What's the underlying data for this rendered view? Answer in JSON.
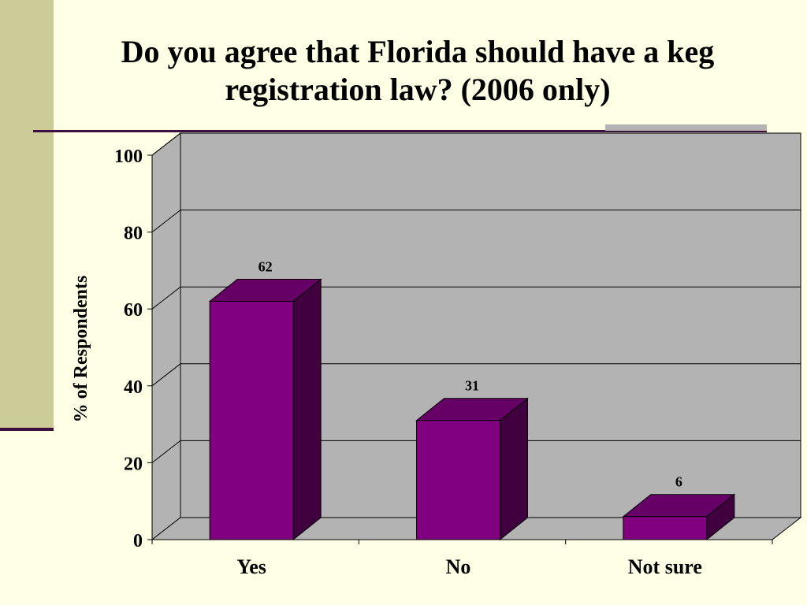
{
  "slide": {
    "title": "Do you agree that Florida should have a keg registration law? (2006 only)"
  },
  "colors": {
    "background": "#ffffe5",
    "side_band": "#cccc99",
    "rule": "#3d0f3d",
    "plot_wall": "#b3b3b3",
    "bar_front": "#800080",
    "bar_side": "#400040",
    "bar_top": "#660066"
  },
  "chart_data": {
    "type": "bar",
    "style": "3d",
    "categories": [
      "Yes",
      "No",
      "Not sure"
    ],
    "values": [
      62,
      31,
      6
    ],
    "data_labels": [
      "62",
      "31",
      "6"
    ],
    "ylabel": "% of Respondents",
    "xlabel": "",
    "ylim": [
      0,
      100
    ],
    "yticks": [
      "0",
      "20",
      "40",
      "60",
      "80",
      "100"
    ],
    "grid": true,
    "legend": "none"
  }
}
